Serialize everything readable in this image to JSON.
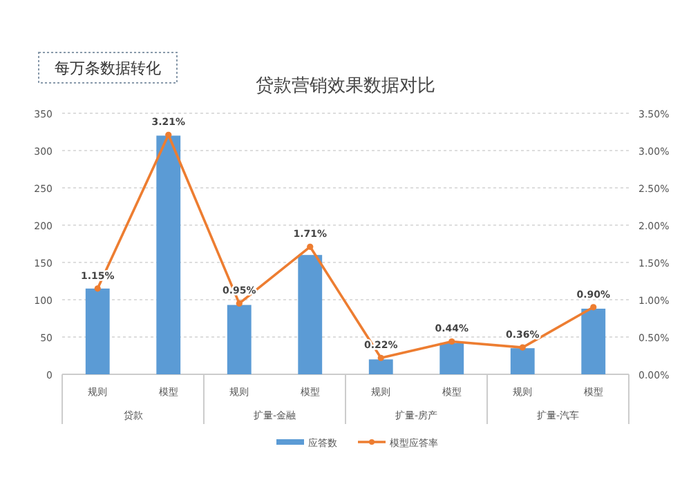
{
  "chart_data": {
    "type": "bar",
    "title": "贷款营销效果数据对比",
    "categories": [
      "规则",
      "模型",
      "规则",
      "模型",
      "规则",
      "模型",
      "规则",
      "模型"
    ],
    "series": [
      {
        "name": "应答数",
        "color": "#5b9bd5",
        "values": [
          115,
          320,
          93,
          160,
          20,
          42,
          35,
          88
        ]
      },
      {
        "name": "模型应答率",
        "type": "line",
        "axis": "y2",
        "color": "#ed7d31",
        "marker": "circle",
        "values": [
          1.15,
          3.21,
          0.95,
          1.71,
          0.22,
          0.44,
          0.36,
          0.9
        ],
        "value_labels": [
          "1.15%",
          "3.21%",
          "0.95%",
          "1.71%",
          "0.22%",
          "0.44%",
          "0.36%",
          "0.90%"
        ]
      }
    ],
    "ylim": [
      0,
      350
    ],
    "yticks": [
      0,
      50,
      100,
      150,
      200,
      250,
      300,
      350
    ],
    "y2lim": [
      0,
      3.5
    ],
    "y2ticks": [
      {
        "value": 0,
        "label": "0.00%"
      },
      {
        "value": 0.5,
        "label": "0.50%"
      },
      {
        "value": 1,
        "label": "1.00%"
      },
      {
        "value": 1.5,
        "label": "1.50%"
      },
      {
        "value": 2,
        "label": "2.00%"
      },
      {
        "value": 2.5,
        "label": "2.50%"
      },
      {
        "value": 3,
        "label": "3.00%"
      },
      {
        "value": 3.5,
        "label": "3.50%"
      }
    ],
    "grid": "y",
    "legend": "bottom",
    "annotations": [
      "每万条数据转化",
      "贷款",
      "扩量-金融",
      "扩量-房产",
      "扩量-汽车"
    ]
  }
}
